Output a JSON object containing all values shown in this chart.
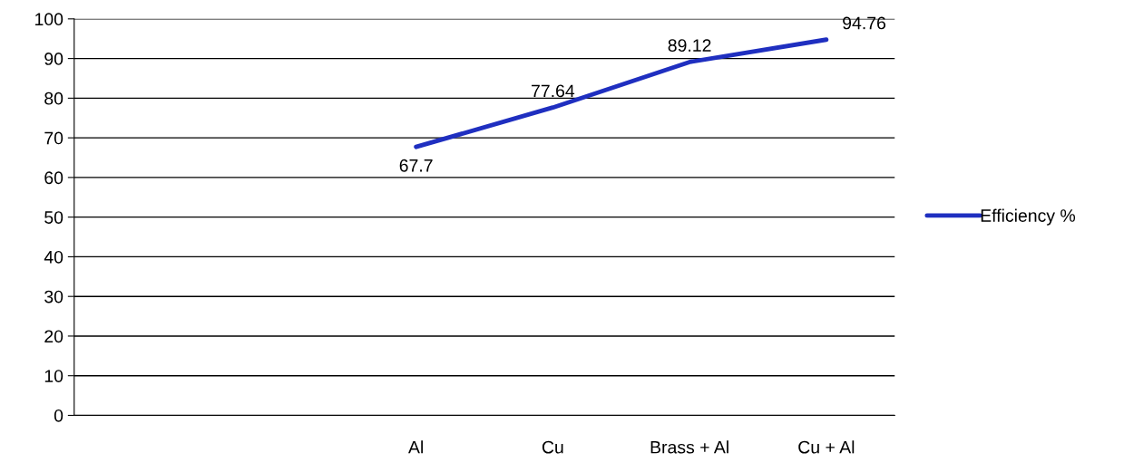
{
  "chart_data": {
    "type": "line",
    "categories": [
      null,
      null,
      "Al",
      "Cu",
      "Brass + Al",
      "Cu + Al"
    ],
    "series": [
      {
        "name": "Efficiency %",
        "color": "#1f2fc0",
        "values": [
          null,
          null,
          67.7,
          77.64,
          89.12,
          94.76
        ]
      }
    ],
    "ylim": [
      0,
      100
    ],
    "yticks": [
      0,
      10,
      20,
      30,
      40,
      50,
      60,
      70,
      80,
      90,
      100
    ],
    "grid": "y",
    "legend": "right",
    "data_labels": true
  }
}
